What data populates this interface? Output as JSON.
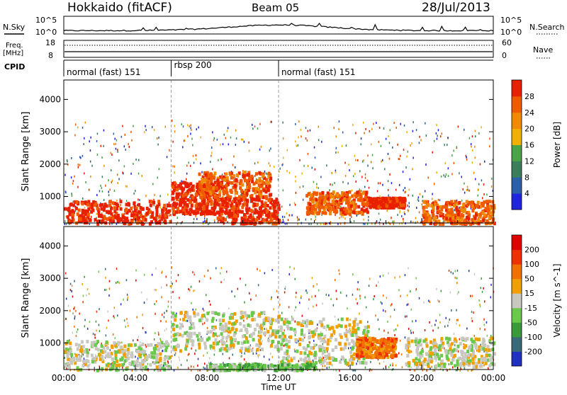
{
  "header": {
    "station": "Hokkaido (fitACF)",
    "beam": "Beam 05",
    "date": "28/Jul/2013"
  },
  "noise_panel": {
    "left_label": "N.Sky",
    "right_label": "N.Search",
    "left_ticks": [
      "10^5",
      "10^0"
    ],
    "right_ticks": [
      "10^5",
      "10^0"
    ]
  },
  "freq_panel": {
    "left_label_top": "Freq.",
    "left_label_unit": "[MHz]",
    "right_label": "Nave",
    "left_ticks": [
      "18",
      "8"
    ],
    "right_ticks": [
      "60",
      "0"
    ]
  },
  "cpid": {
    "label": "CPID",
    "segments": [
      {
        "name": "normal (fast) 151",
        "start_h": 0,
        "end_h": 6
      },
      {
        "name": "rbsp 200",
        "start_h": 6,
        "end_h": 12
      },
      {
        "name": "normal (fast) 151",
        "start_h": 12,
        "end_h": 24
      }
    ]
  },
  "chart_data": [
    {
      "type": "heatmap",
      "title": "Power",
      "xlabel": "Time UT",
      "ylabel": "Slant Range [km]",
      "xlim": [
        0,
        24
      ],
      "ylim": [
        180,
        4600
      ],
      "yticks": [
        1000,
        2000,
        3000,
        4000
      ],
      "colorbar": {
        "label": "Power [dB]",
        "ticks": [
          "4",
          "8",
          "12",
          "16",
          "20",
          "24",
          "28"
        ],
        "colors": [
          "#1f24e0",
          "#2b5fa8",
          "#3a7f5a",
          "#4aa447",
          "#f0b000",
          "#f08a00",
          "#f05a00",
          "#e82000"
        ]
      },
      "regions": [
        {
          "t0": 0.0,
          "t1": 5.9,
          "r0": 200,
          "r1": 900,
          "level": 7
        },
        {
          "t0": 6.0,
          "t1": 8.5,
          "r0": 500,
          "r1": 1500,
          "level": 7
        },
        {
          "t0": 7.5,
          "t1": 11.5,
          "r0": 1000,
          "r1": 1800,
          "level": 6
        },
        {
          "t0": 8.5,
          "t1": 12.0,
          "r0": 200,
          "r1": 1000,
          "level": 7
        },
        {
          "t0": 13.5,
          "t1": 17.0,
          "r0": 500,
          "r1": 1200,
          "level": 6
        },
        {
          "t0": 17.0,
          "t1": 19.0,
          "r0": 700,
          "r1": 1000,
          "level": 7
        },
        {
          "t0": 20.0,
          "t1": 24.0,
          "r0": 200,
          "r1": 900,
          "level": 6
        }
      ]
    },
    {
      "type": "heatmap",
      "title": "Velocity",
      "xlabel": "Time UT",
      "ylabel": "Slant Range [km]",
      "xlim": [
        0,
        24
      ],
      "ylim": [
        180,
        4600
      ],
      "yticks": [
        1000,
        2000,
        3000,
        4000
      ],
      "colorbar": {
        "label": "Velocity [m s^-1]",
        "ticks": [
          "200",
          "100",
          "50",
          "15",
          "-15",
          "-50",
          "-100",
          "-200"
        ],
        "colors": [
          "#2030c0",
          "#3a6a7a",
          "#3a9a3a",
          "#6ac84a",
          "#c8c8c0",
          "#f0a000",
          "#f07000",
          "#f03000",
          "#e00000"
        ]
      },
      "regions": [
        {
          "t0": 0.0,
          "t1": 5.9,
          "r0": 200,
          "r1": 1100,
          "level": 4
        },
        {
          "t0": 6.0,
          "t1": 12.0,
          "r0": 800,
          "r1": 2000,
          "level": 4
        },
        {
          "t0": 12.0,
          "t1": 17.0,
          "r0": 400,
          "r1": 1800,
          "level": 4
        },
        {
          "t0": 16.3,
          "t1": 18.5,
          "r0": 600,
          "r1": 1200,
          "level": 6
        },
        {
          "t0": 8.0,
          "t1": 14.0,
          "r0": 200,
          "r1": 400,
          "level": 3
        },
        {
          "t0": 19.0,
          "t1": 24.0,
          "r0": 300,
          "r1": 1200,
          "level": 4
        }
      ]
    }
  ],
  "time_axis": {
    "labels": [
      "00:00",
      "04:00",
      "08:00",
      "12:00",
      "16:00",
      "20:00",
      "00:00"
    ],
    "title": "Time UT"
  }
}
